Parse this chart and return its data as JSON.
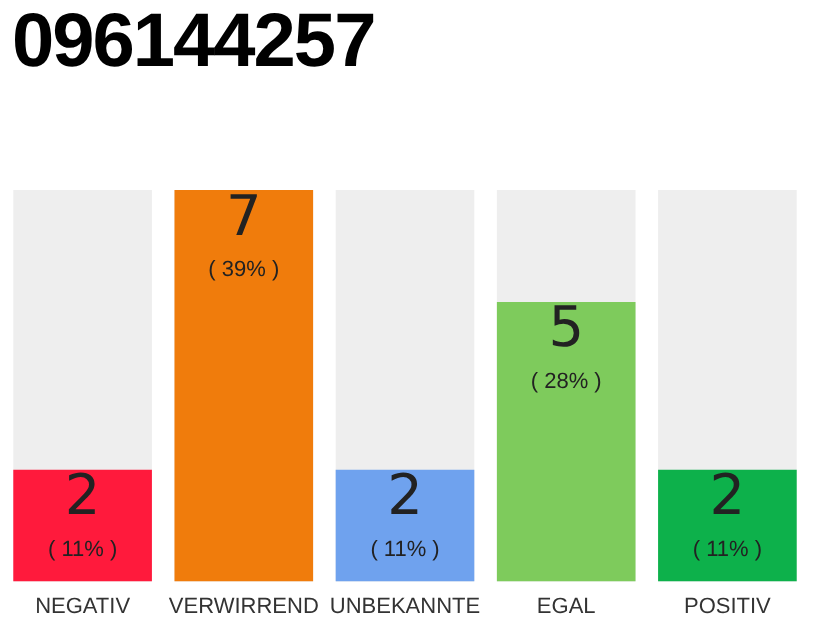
{
  "chart_data": {
    "type": "bar",
    "title": "096144257",
    "categories": [
      "NEGATIV",
      "VERWIRREND",
      "UNBEKANNTE",
      "EGAL",
      "POSITIV"
    ],
    "values": [
      2,
      7,
      2,
      5,
      2
    ],
    "colors": [
      "#ff1a3c",
      "#f07c0c",
      "#6fa2ee",
      "#7ecb5c",
      "#0db14b"
    ],
    "data_labels": true,
    "annotations": [
      "( 11% )",
      "( 39% )",
      "( 11% )",
      "( 28% )",
      "( 11% )"
    ],
    "grid": false,
    "legend": false,
    "tick_labels": "x"
  }
}
